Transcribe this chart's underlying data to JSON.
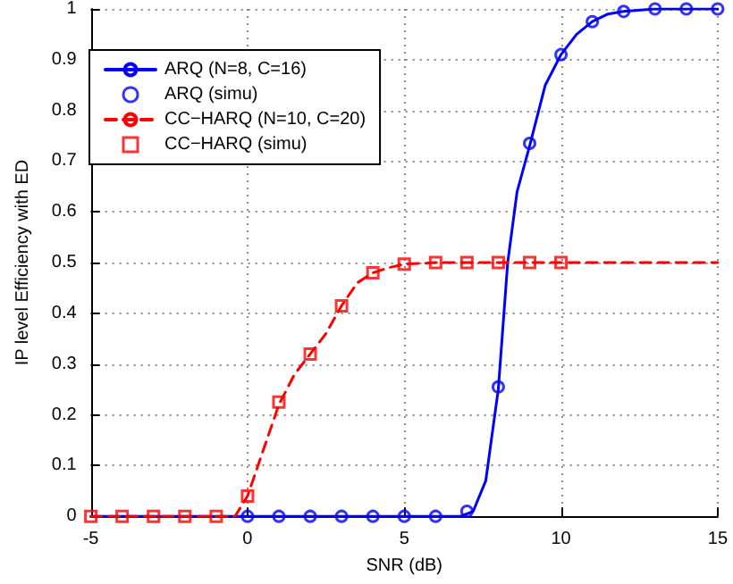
{
  "chart_data": {
    "type": "line",
    "xlabel": "SNR (dB)",
    "ylabel": "IP level Efficiency with ED",
    "xlim": [
      -5,
      15
    ],
    "xticks": [
      -5,
      0,
      5,
      10,
      15
    ],
    "ylim": [
      0,
      1
    ],
    "yticks": [
      0,
      0.1,
      0.2,
      0.3,
      0.4,
      0.5,
      0.6,
      0.7,
      0.8,
      0.9,
      1
    ],
    "grid": true,
    "legend": "top left",
    "series": [
      {
        "name": "ARQ (N=8, C=16)",
        "type": "line",
        "marker": "none",
        "line_style": "solid",
        "color": "#0000ff",
        "x": [
          -5,
          0,
          5,
          6,
          6.8,
          7.2,
          7.6,
          8,
          8.3,
          8.6,
          9,
          9.5,
          10,
          10.5,
          11,
          11.5,
          12,
          13,
          15
        ],
        "values": [
          0,
          0,
          0,
          0,
          0,
          0.01,
          0.07,
          0.25,
          0.5,
          0.64,
          0.73,
          0.85,
          0.91,
          0.95,
          0.975,
          0.99,
          0.995,
          1,
          1
        ]
      },
      {
        "name": "ARQ (simu)",
        "type": "scatter",
        "marker": "circle",
        "color": "#0000ff",
        "x": [
          0,
          1,
          2,
          3,
          4,
          5,
          6,
          7,
          8,
          9,
          10,
          11,
          12,
          13,
          14,
          15
        ],
        "values": [
          0,
          0,
          0,
          0,
          0,
          0,
          0,
          0.01,
          0.255,
          0.735,
          0.91,
          0.975,
          0.995,
          1,
          1,
          1
        ]
      },
      {
        "name": "CC−HARQ (N=10, C=20)",
        "type": "line",
        "marker": "none",
        "line_style": "dashed",
        "color": "#ff0000",
        "x": [
          -5,
          -1,
          -0.4,
          0,
          0.5,
          1,
          1.5,
          2,
          2.5,
          3,
          3.5,
          4,
          4.5,
          5,
          6,
          10,
          15
        ],
        "values": [
          0,
          0,
          0,
          0.04,
          0.13,
          0.22,
          0.28,
          0.32,
          0.36,
          0.415,
          0.46,
          0.48,
          0.49,
          0.497,
          0.5,
          0.5,
          0.5
        ]
      },
      {
        "name": "CC−HARQ (simu)",
        "type": "scatter",
        "marker": "square",
        "color": "#ff0000",
        "x": [
          -5,
          -4,
          -3,
          -2,
          -1,
          0,
          1,
          2,
          3,
          4,
          5,
          6,
          7,
          8,
          9,
          10
        ],
        "values": [
          0,
          0,
          0,
          0,
          0,
          0.04,
          0.225,
          0.32,
          0.415,
          0.48,
          0.497,
          0.5,
          0.5,
          0.5,
          0.5,
          0.5
        ]
      }
    ]
  }
}
